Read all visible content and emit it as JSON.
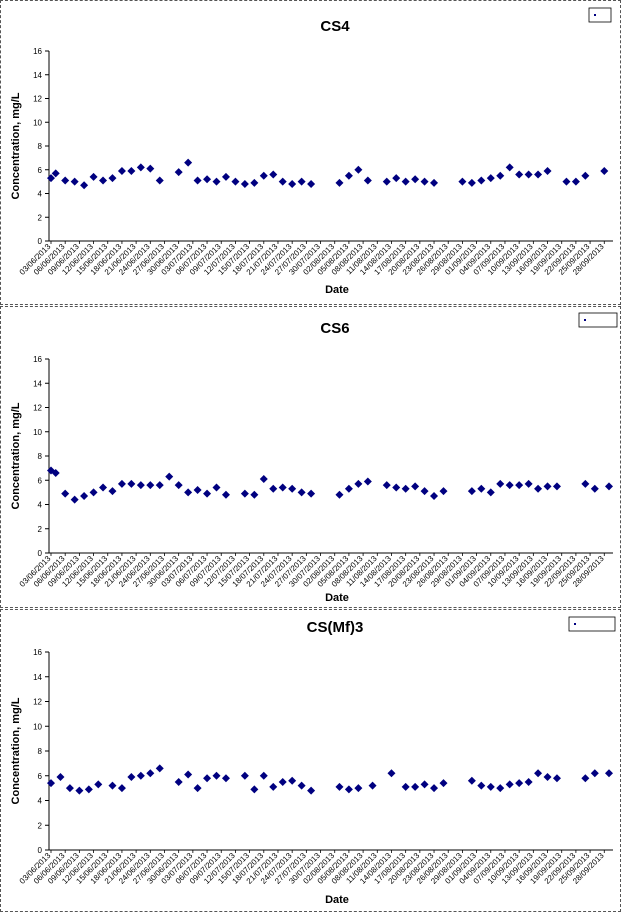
{
  "charts": {
    "type": "scatter",
    "xlabel": "Date",
    "ylabel": "Concentration, mg/L",
    "ylim": [
      0,
      16
    ],
    "y_ticks": [
      "0",
      "2",
      "4",
      "6",
      "8",
      "10",
      "12",
      "14",
      "16"
    ],
    "x_ticks": [
      "03/06/2013",
      "06/06/2013",
      "09/06/2013",
      "12/06/2013",
      "15/06/2013",
      "18/06/2013",
      "21/06/2013",
      "24/06/2013",
      "27/06/2013",
      "30/06/2013",
      "03/07/2013",
      "06/07/2013",
      "09/07/2013",
      "12/07/2013",
      "15/07/2013",
      "18/07/2013",
      "21/07/2013",
      "24/07/2013",
      "27/07/2013",
      "30/07/2013",
      "02/08/2013",
      "05/08/2013",
      "08/08/2013",
      "11/08/2013",
      "14/08/2013",
      "17/08/2013",
      "20/08/2013",
      "23/08/2013",
      "26/08/2013",
      "29/08/2013",
      "01/09/2013",
      "04/09/2013",
      "07/09/2013",
      "10/09/2013",
      "13/09/2013",
      "16/09/2013",
      "19/09/2013",
      "22/09/2013",
      "25/09/2013",
      "28/09/2013"
    ],
    "marker_color": "#000080"
  },
  "chart_data": [
    {
      "type": "scatter",
      "title": "CS4",
      "xlabel": "Date",
      "ylabel": "Concentration, mg/L",
      "ylim": [
        0,
        16
      ],
      "xlim": [
        "03/06/2013",
        "29/09/2013"
      ],
      "grid": false,
      "legend": "top-right",
      "x": [
        "03/06/2013",
        "04/06/2013",
        "06/06/2013",
        "08/06/2013",
        "10/06/2013",
        "12/06/2013",
        "14/06/2013",
        "16/06/2013",
        "18/06/2013",
        "20/06/2013",
        "22/06/2013",
        "24/06/2013",
        "26/06/2013",
        "30/06/2013",
        "02/07/2013",
        "04/07/2013",
        "06/07/2013",
        "08/07/2013",
        "10/07/2013",
        "12/07/2013",
        "14/07/2013",
        "16/07/2013",
        "18/07/2013",
        "20/07/2013",
        "22/07/2013",
        "24/07/2013",
        "26/07/2013",
        "28/07/2013",
        "03/08/2013",
        "05/08/2013",
        "07/08/2013",
        "09/08/2013",
        "13/08/2013",
        "15/08/2013",
        "17/08/2013",
        "19/08/2013",
        "21/08/2013",
        "23/08/2013",
        "29/08/2013",
        "31/08/2013",
        "02/09/2013",
        "04/09/2013",
        "06/09/2013",
        "08/09/2013",
        "10/09/2013",
        "12/09/2013",
        "14/09/2013",
        "16/09/2013",
        "20/09/2013",
        "22/09/2013",
        "24/09/2013",
        "28/09/2013"
      ],
      "y": [
        5.3,
        5.7,
        5.1,
        5.0,
        4.7,
        5.4,
        5.1,
        5.3,
        5.9,
        5.9,
        6.2,
        6.1,
        5.1,
        5.8,
        6.6,
        5.1,
        5.2,
        5.0,
        5.4,
        5.0,
        4.8,
        4.9,
        5.5,
        5.6,
        5.0,
        4.8,
        5.0,
        4.8,
        4.9,
        5.5,
        6.0,
        5.1,
        5.0,
        5.3,
        5.0,
        5.2,
        5.0,
        4.9,
        5.0,
        4.9,
        5.1,
        5.3,
        5.5,
        6.2,
        5.6,
        5.6,
        5.6,
        5.9,
        5.0,
        5.0,
        5.5,
        5.9
      ]
    },
    {
      "type": "scatter",
      "title": "CS6",
      "xlabel": "Date",
      "ylabel": "Concentration, mg/L",
      "ylim": [
        0,
        16
      ],
      "xlim": [
        "03/06/2013",
        "29/09/2013"
      ],
      "grid": false,
      "legend": "top-right",
      "x": [
        "03/06/2013",
        "04/06/2013",
        "06/06/2013",
        "08/06/2013",
        "10/06/2013",
        "12/06/2013",
        "14/06/2013",
        "16/06/2013",
        "18/06/2013",
        "20/06/2013",
        "22/06/2013",
        "24/06/2013",
        "26/06/2013",
        "28/06/2013",
        "30/06/2013",
        "02/07/2013",
        "04/07/2013",
        "06/07/2013",
        "08/07/2013",
        "10/07/2013",
        "14/07/2013",
        "16/07/2013",
        "18/07/2013",
        "20/07/2013",
        "22/07/2013",
        "24/07/2013",
        "26/07/2013",
        "28/07/2013",
        "03/08/2013",
        "05/08/2013",
        "07/08/2013",
        "09/08/2013",
        "13/08/2013",
        "15/08/2013",
        "17/08/2013",
        "19/08/2013",
        "21/08/2013",
        "23/08/2013",
        "25/08/2013",
        "31/08/2013",
        "02/09/2013",
        "04/09/2013",
        "06/09/2013",
        "08/09/2013",
        "10/09/2013",
        "12/09/2013",
        "14/09/2013",
        "16/09/2013",
        "18/09/2013",
        "24/09/2013",
        "26/09/2013",
        "29/09/2013"
      ],
      "y": [
        6.8,
        6.6,
        4.9,
        4.4,
        4.7,
        5.0,
        5.4,
        5.1,
        5.7,
        5.7,
        5.6,
        5.6,
        5.6,
        6.3,
        5.6,
        5.0,
        5.2,
        4.9,
        5.4,
        4.8,
        4.9,
        4.8,
        6.1,
        5.3,
        5.4,
        5.3,
        5.0,
        4.9,
        4.8,
        5.3,
        5.7,
        5.9,
        5.6,
        5.4,
        5.3,
        5.5,
        5.1,
        4.7,
        5.1,
        5.1,
        5.3,
        5.0,
        5.7,
        5.6,
        5.6,
        5.7,
        5.3,
        5.5,
        5.5,
        5.7,
        5.3,
        5.5
      ]
    },
    {
      "type": "scatter",
      "title": "CS(Mf)3",
      "xlabel": "Date",
      "ylabel": "Concentration, mg/L",
      "ylim": [
        0,
        16
      ],
      "xlim": [
        "03/06/2013",
        "29/09/2013"
      ],
      "grid": false,
      "legend": "top-right",
      "x": [
        "03/06/2013",
        "05/06/2013",
        "07/06/2013",
        "09/06/2013",
        "11/06/2013",
        "13/06/2013",
        "16/06/2013",
        "18/06/2013",
        "20/06/2013",
        "22/06/2013",
        "24/06/2013",
        "26/06/2013",
        "30/06/2013",
        "02/07/2013",
        "04/07/2013",
        "06/07/2013",
        "08/07/2013",
        "10/07/2013",
        "14/07/2013",
        "16/07/2013",
        "18/07/2013",
        "20/07/2013",
        "22/07/2013",
        "24/07/2013",
        "26/07/2013",
        "28/07/2013",
        "03/08/2013",
        "05/08/2013",
        "07/08/2013",
        "10/08/2013",
        "14/08/2013",
        "17/08/2013",
        "19/08/2013",
        "21/08/2013",
        "23/08/2013",
        "25/08/2013",
        "31/08/2013",
        "02/09/2013",
        "04/09/2013",
        "06/09/2013",
        "08/09/2013",
        "10/09/2013",
        "12/09/2013",
        "14/09/2013",
        "16/09/2013",
        "18/09/2013",
        "24/09/2013",
        "26/09/2013",
        "29/09/2013"
      ],
      "y": [
        5.4,
        5.9,
        5.0,
        4.8,
        4.9,
        5.3,
        5.2,
        5.0,
        5.9,
        6.0,
        6.2,
        6.6,
        5.5,
        6.1,
        5.0,
        5.8,
        6.0,
        5.8,
        6.0,
        4.9,
        6.0,
        5.1,
        5.5,
        5.6,
        5.2,
        4.8,
        5.1,
        4.9,
        5.0,
        5.2,
        6.2,
        5.1,
        5.1,
        5.3,
        5.0,
        5.4,
        5.6,
        5.2,
        5.1,
        5.0,
        5.3,
        5.4,
        5.5,
        6.2,
        5.9,
        5.8,
        5.8,
        6.2,
        6.2
      ]
    }
  ]
}
